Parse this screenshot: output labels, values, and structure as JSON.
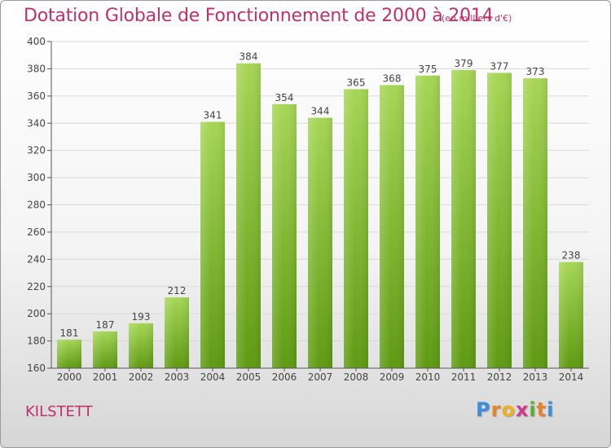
{
  "chart_data": {
    "type": "bar",
    "title": "Dotation Globale de Fonctionnement de 2000 à 2014",
    "subtitle": "(en milliers d'€)",
    "categories": [
      "2000",
      "2001",
      "2002",
      "2003",
      "2004",
      "2005",
      "2006",
      "2007",
      "2008",
      "2009",
      "2010",
      "2011",
      "2012",
      "2013",
      "2014"
    ],
    "values": [
      181,
      187,
      193,
      212,
      341,
      384,
      354,
      344,
      365,
      368,
      375,
      379,
      377,
      373,
      238
    ],
    "ylim": [
      160,
      400
    ],
    "yticks": [
      160,
      180,
      200,
      220,
      240,
      260,
      280,
      300,
      320,
      340,
      360,
      380,
      400
    ],
    "xlabel": "",
    "ylabel": "",
    "grid": true,
    "colors": {
      "bar_top": "#a6d655",
      "bar_bottom": "#5e9a12",
      "title": "#c0306a",
      "axis": "#555555",
      "grid": "#d9d9d9"
    }
  },
  "footer": {
    "town": "KILSTETT",
    "logo_letters": [
      "P",
      "r",
      "o",
      "x",
      "i",
      "t",
      "i"
    ],
    "logo_colors": [
      "#3a8fd8",
      "#e8832a",
      "#f0b020",
      "#d03a8a",
      "#58b030",
      "#e8832a",
      "#3a8fd8"
    ]
  }
}
